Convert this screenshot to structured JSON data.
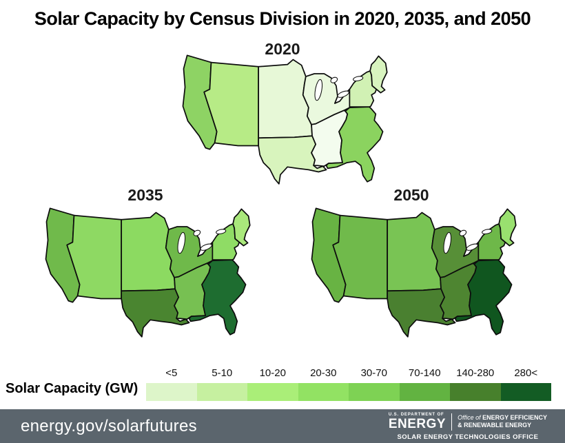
{
  "title": "Solar Capacity by Census Division in 2020, 2035, and 2050",
  "legend": {
    "label": "Solar Capacity (GW)",
    "bins": [
      {
        "label": "<5",
        "color": "#ddf5c9"
      },
      {
        "label": "5-10",
        "color": "#c6f0a0"
      },
      {
        "label": "10-20",
        "color": "#aaee78"
      },
      {
        "label": "20-30",
        "color": "#92e263"
      },
      {
        "label": "30-70",
        "color": "#7ed254"
      },
      {
        "label": "70-140",
        "color": "#62b341"
      },
      {
        "label": "140-280",
        "color": "#47802c"
      },
      {
        "label": "280<",
        "color": "#135c24"
      }
    ]
  },
  "maps": [
    {
      "year": "2020",
      "divisions": {
        "pacific": {
          "name": "Pacific",
          "color": "#8ed364",
          "bin": "20-30"
        },
        "mountain": {
          "name": "Mountain",
          "color": "#b7eb86",
          "bin": "10-20"
        },
        "west_north_central": {
          "name": "West North Central",
          "color": "#e7f8d7",
          "bin": "<5"
        },
        "east_north_central": {
          "name": "East North Central",
          "color": "#eaf9de",
          "bin": "<5"
        },
        "west_south_central": {
          "name": "West South Central",
          "color": "#d8f4bd",
          "bin": "5-10"
        },
        "east_south_central": {
          "name": "East South Central",
          "color": "#f3fcee",
          "bin": "<5"
        },
        "south_atlantic": {
          "name": "South Atlantic",
          "color": "#8bd35f",
          "bin": "20-30"
        },
        "middle_atlantic": {
          "name": "Middle Atlantic",
          "color": "#d1f1b4",
          "bin": "5-10"
        },
        "new_england": {
          "name": "New England",
          "color": "#d8f4bf",
          "bin": "5-10"
        }
      }
    },
    {
      "year": "2035",
      "divisions": {
        "pacific": {
          "name": "Pacific",
          "color": "#70ba4b",
          "bin": "70-140"
        },
        "mountain": {
          "name": "Mountain",
          "color": "#8ed963",
          "bin": "20-30"
        },
        "west_north_central": {
          "name": "West North Central",
          "color": "#8cda61",
          "bin": "20-30"
        },
        "east_north_central": {
          "name": "East North Central",
          "color": "#6fb94a",
          "bin": "70-140"
        },
        "west_south_central": {
          "name": "West South Central",
          "color": "#4a8530",
          "bin": "140-280"
        },
        "east_south_central": {
          "name": "East South Central",
          "color": "#77c052",
          "bin": "30-70"
        },
        "south_atlantic": {
          "name": "South Atlantic",
          "color": "#1e6d30",
          "bin": "280<"
        },
        "middle_atlantic": {
          "name": "Middle Atlantic",
          "color": "#8fdc65",
          "bin": "20-30"
        },
        "new_england": {
          "name": "New England",
          "color": "#a9e87b",
          "bin": "10-20"
        }
      }
    },
    {
      "year": "2050",
      "divisions": {
        "pacific": {
          "name": "Pacific",
          "color": "#68b343",
          "bin": "70-140"
        },
        "mountain": {
          "name": "Mountain",
          "color": "#70ba4b",
          "bin": "70-140"
        },
        "west_north_central": {
          "name": "West North Central",
          "color": "#79c454",
          "bin": "30-70"
        },
        "east_north_central": {
          "name": "East North Central",
          "color": "#578f37",
          "bin": "140-280"
        },
        "west_south_central": {
          "name": "West South Central",
          "color": "#4a8030",
          "bin": "140-280"
        },
        "east_south_central": {
          "name": "East South Central",
          "color": "#4e8531",
          "bin": "140-280"
        },
        "south_atlantic": {
          "name": "South Atlantic",
          "color": "#10561f",
          "bin": "280<"
        },
        "middle_atlantic": {
          "name": "Middle Atlantic",
          "color": "#6eb849",
          "bin": "70-140"
        },
        "new_england": {
          "name": "New England",
          "color": "#99e06f",
          "bin": "20-30"
        }
      }
    }
  ],
  "footer": {
    "bg": "#5b656d",
    "link": "energy.gov/solarfutures",
    "doe": {
      "dept": "U.S. DEPARTMENT OF",
      "energy": "ENERGY",
      "office_of": "Office of",
      "office_line1": "ENERGY EFFICIENCY",
      "office_line2": "& RENEWABLE ENERGY",
      "sub": "SOLAR ENERGY TECHNOLOGIES OFFICE"
    }
  },
  "chart_data": {
    "type": "heatmap",
    "title": "Solar Capacity by Census Division in 2020, 2035, and 2050",
    "unit": "GW",
    "legend_label": "Solar Capacity (GW)",
    "legend_bins": [
      "<5",
      "5-10",
      "10-20",
      "20-30",
      "30-70",
      "70-140",
      "140-280",
      "280<"
    ],
    "legend_position": "bottom",
    "categories": [
      "New England",
      "Middle Atlantic",
      "East North Central",
      "West North Central",
      "South Atlantic",
      "East South Central",
      "West South Central",
      "Mountain",
      "Pacific"
    ],
    "series": [
      {
        "name": "2020",
        "values": [
          "5-10",
          "5-10",
          "<5",
          "<5",
          "20-30",
          "<5",
          "5-10",
          "10-20",
          "20-30"
        ]
      },
      {
        "name": "2035",
        "values": [
          "10-20",
          "20-30",
          "70-140",
          "20-30",
          "280<",
          "30-70",
          "140-280",
          "20-30",
          "70-140"
        ]
      },
      {
        "name": "2050",
        "values": [
          "20-30",
          "70-140",
          "140-280",
          "30-70",
          "280<",
          "140-280",
          "140-280",
          "70-140",
          "70-140"
        ]
      }
    ]
  }
}
